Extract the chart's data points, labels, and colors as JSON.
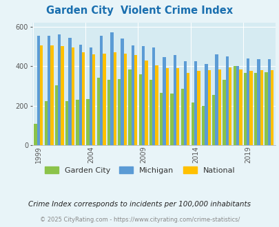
{
  "title": "Garden City  Violent Crime Index",
  "years": [
    1999,
    2000,
    2001,
    2002,
    2003,
    2004,
    2005,
    2006,
    2007,
    2008,
    2009,
    2010,
    2011,
    2012,
    2013,
    2014,
    2015,
    2016,
    2017,
    2018,
    2019,
    2020,
    2021
  ],
  "garden_city": [
    110,
    225,
    305,
    225,
    230,
    235,
    340,
    330,
    335,
    385,
    360,
    330,
    265,
    260,
    285,
    215,
    200,
    255,
    330,
    400,
    365,
    365,
    370
  ],
  "michigan": [
    555,
    555,
    560,
    545,
    510,
    495,
    555,
    570,
    540,
    505,
    500,
    495,
    445,
    455,
    425,
    425,
    410,
    460,
    450,
    400,
    440,
    435,
    435
  ],
  "national": [
    505,
    505,
    500,
    495,
    470,
    460,
    465,
    470,
    465,
    455,
    430,
    405,
    390,
    390,
    365,
    375,
    380,
    385,
    395,
    385,
    375,
    380,
    380
  ],
  "garden_city_color": "#8bc34a",
  "michigan_color": "#5b9bd5",
  "national_color": "#ffc000",
  "bg_color": "#e8f4f8",
  "plot_bg_color": "#d6ebf2",
  "ylim": [
    0,
    620
  ],
  "yticks": [
    0,
    200,
    400,
    600
  ],
  "xlabel_years": [
    1999,
    2004,
    2009,
    2014,
    2019
  ],
  "footer_text": "© 2025 CityRating.com - https://www.cityrating.com/crime-statistics/",
  "note_text": "Crime Index corresponds to incidents per 100,000 inhabitants",
  "legend_labels": [
    "Garden City",
    "Michigan",
    "National"
  ]
}
